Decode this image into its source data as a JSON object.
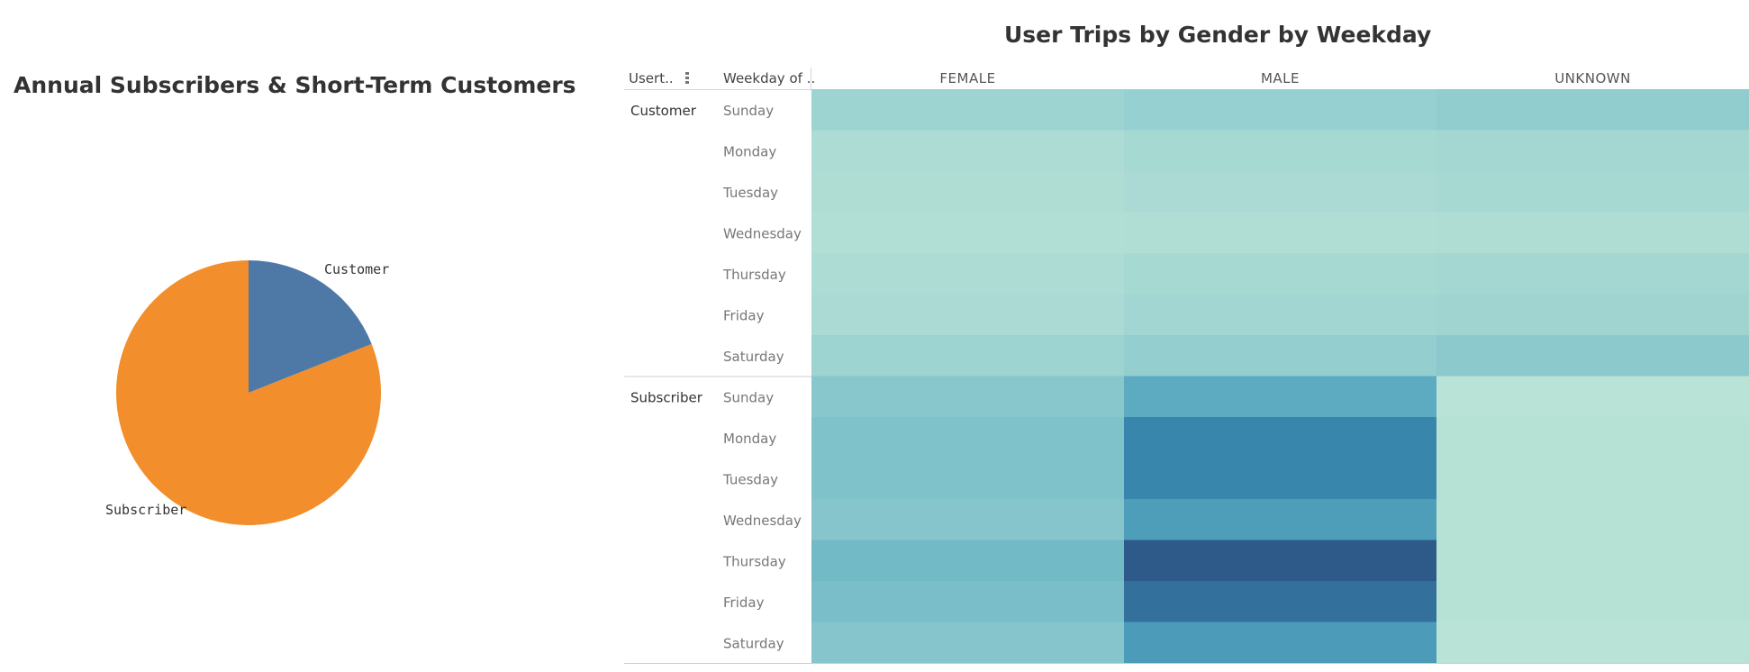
{
  "chart_data": [
    {
      "type": "pie",
      "title": "Annual Subscribers & Short-Term Customers",
      "categories": [
        "Customer",
        "Subscriber"
      ],
      "values": [
        19,
        81
      ],
      "colors": [
        "#4e79a7",
        "#f28e2b"
      ]
    },
    {
      "type": "heatmap",
      "title": "User Trips by Gender by Weekday",
      "row_header_1": "Usert..",
      "row_header_2": "Weekday of ..",
      "sort_icon": "sort-icon",
      "columns": [
        "FEMALE",
        "MALE",
        "UNKNOWN"
      ],
      "groups": [
        {
          "name": "Customer",
          "rows": [
            "Sunday",
            "Monday",
            "Tuesday",
            "Wednesday",
            "Thursday",
            "Friday",
            "Saturday"
          ],
          "values": [
            [
              12,
              14,
              16
            ],
            [
              6,
              8,
              9
            ],
            [
              5,
              7,
              8
            ],
            [
              4,
              4.5,
              5
            ],
            [
              6,
              8,
              9
            ],
            [
              7,
              10,
              11
            ],
            [
              12,
              15,
              18
            ]
          ]
        },
        {
          "name": "Subscriber",
          "rows": [
            "Sunday",
            "Monday",
            "Tuesday",
            "Wednesday",
            "Thursday",
            "Friday",
            "Saturday"
          ],
          "values": [
            [
              19,
              33,
              1
            ],
            [
              22,
              46,
              2
            ],
            [
              22,
              46,
              2
            ],
            [
              20,
              38,
              2
            ],
            [
              26,
              56,
              2
            ],
            [
              24,
              51,
              2
            ],
            [
              20,
              39,
              1
            ]
          ]
        }
      ],
      "color_scale": [
        "#b9e3d6",
        "#9dd3d1",
        "#7cc0c9",
        "#5aa9c0",
        "#3a8ab0",
        "#2d5a89"
      ]
    }
  ]
}
